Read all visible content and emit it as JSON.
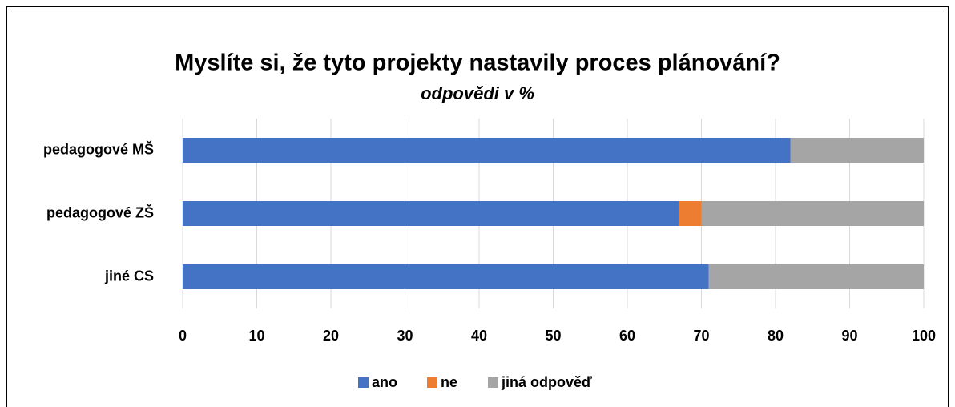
{
  "chart_data": {
    "type": "stacked_barh",
    "title": "Myslíte si, že tyto projekty nastavily proces plánování?",
    "subtitle": "odpovědi v %",
    "categories": [
      "pedagogové MŠ",
      "pedagogové ZŠ",
      "jiné CS"
    ],
    "series": [
      {
        "name": "ano",
        "color": "#4472c4",
        "values": [
          82,
          67,
          71
        ]
      },
      {
        "name": "ne",
        "color": "#ed7d31",
        "values": [
          0,
          3,
          0
        ]
      },
      {
        "name": "jiná odpověď",
        "color": "#a5a5a5",
        "values": [
          18,
          30,
          29
        ]
      }
    ],
    "xlim": [
      0,
      100
    ],
    "xticks": [
      0,
      10,
      20,
      30,
      40,
      50,
      60,
      70,
      80,
      90,
      100
    ],
    "grid": true,
    "legend": "bottom"
  }
}
